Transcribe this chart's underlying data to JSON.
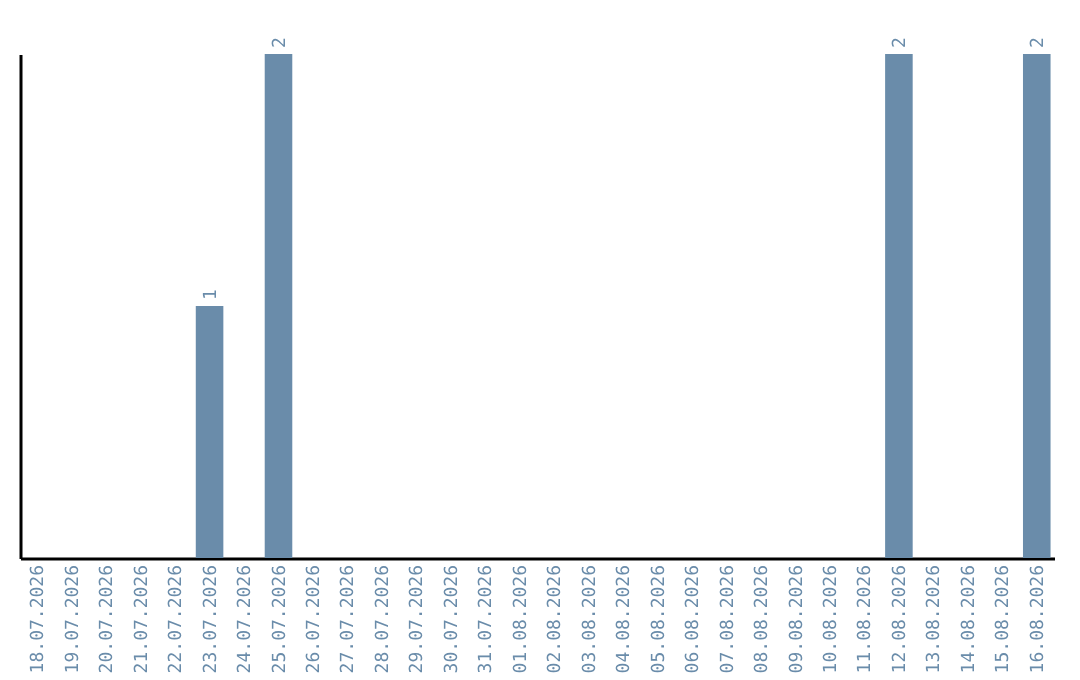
{
  "chart_data": {
    "type": "bar",
    "categories": [
      "18.07.2026",
      "19.07.2026",
      "20.07.2026",
      "21.07.2026",
      "22.07.2026",
      "23.07.2026",
      "24.07.2026",
      "25.07.2026",
      "26.07.2026",
      "27.07.2026",
      "28.07.2026",
      "29.07.2026",
      "30.07.2026",
      "31.07.2026",
      "01.08.2026",
      "02.08.2026",
      "03.08.2026",
      "04.08.2026",
      "05.08.2026",
      "06.08.2026",
      "07.08.2026",
      "08.08.2026",
      "09.08.2026",
      "10.08.2026",
      "11.08.2026",
      "12.08.2026",
      "13.08.2026",
      "14.08.2026",
      "15.08.2026",
      "16.08.2026"
    ],
    "values": [
      0,
      0,
      0,
      0,
      0,
      1,
      0,
      2,
      0,
      0,
      0,
      0,
      0,
      0,
      0,
      0,
      0,
      0,
      0,
      0,
      0,
      0,
      0,
      0,
      0,
      2,
      0,
      0,
      0,
      2
    ],
    "value_labels": [
      null,
      null,
      null,
      null,
      null,
      "1",
      null,
      "2",
      null,
      null,
      null,
      null,
      null,
      null,
      null,
      null,
      null,
      null,
      null,
      null,
      null,
      null,
      null,
      null,
      null,
      "2",
      null,
      null,
      null,
      "2"
    ],
    "color": "#6a8caa",
    "tick_labels": "x",
    "grid": false
  }
}
